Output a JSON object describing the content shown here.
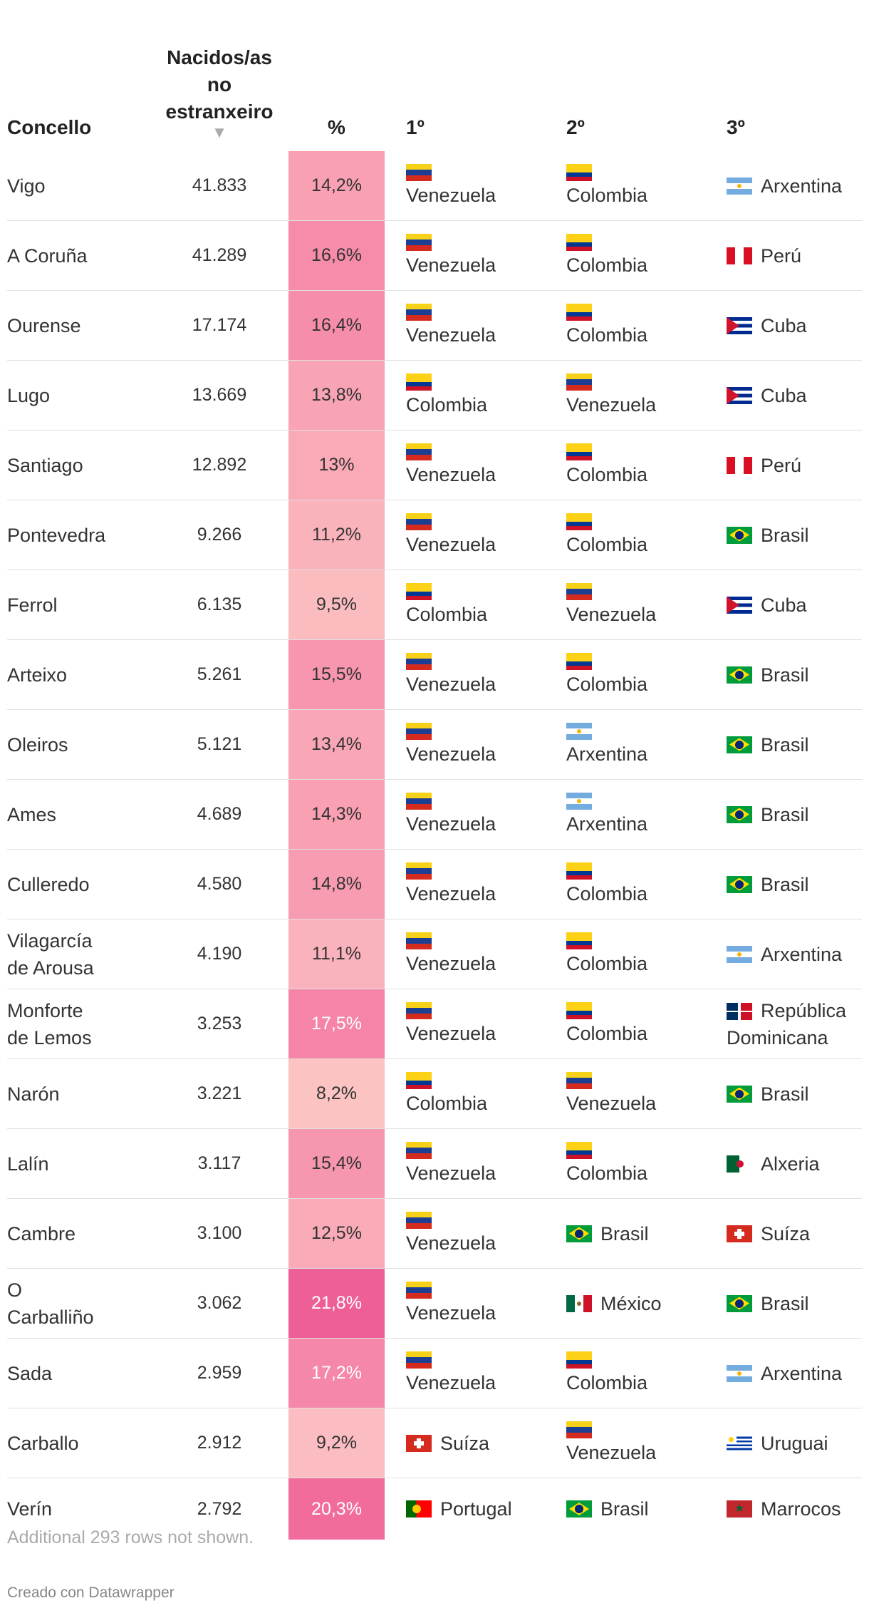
{
  "headers": {
    "concello": "Concello",
    "born": [
      "Nacidos/as",
      "no",
      "estranxeiro"
    ],
    "sort_indicator": "▼",
    "pct": "%",
    "first": "1º",
    "second": "2º",
    "third": "3º"
  },
  "rows": [
    {
      "name": [
        "Vigo"
      ],
      "born": "41.833",
      "pct": "14,2%",
      "pct_value": 14.2,
      "c1": "Venezuela",
      "c1_flag": "ve",
      "c1_layout": "stack",
      "c2": "Colombia",
      "c2_flag": "co",
      "c2_layout": "stack",
      "c3": "Arxentina",
      "c3_flag": "ar",
      "c3_layout": "inline"
    },
    {
      "name": [
        "A Coruña"
      ],
      "born": "41.289",
      "pct": "16,6%",
      "pct_value": 16.6,
      "c1": "Venezuela",
      "c1_flag": "ve",
      "c1_layout": "stack",
      "c2": "Colombia",
      "c2_flag": "co",
      "c2_layout": "stack",
      "c3": "Perú",
      "c3_flag": "pe",
      "c3_layout": "inline"
    },
    {
      "name": [
        "Ourense"
      ],
      "born": "17.174",
      "pct": "16,4%",
      "pct_value": 16.4,
      "c1": "Venezuela",
      "c1_flag": "ve",
      "c1_layout": "stack",
      "c2": "Colombia",
      "c2_flag": "co",
      "c2_layout": "stack",
      "c3": "Cuba",
      "c3_flag": "cu",
      "c3_layout": "inline"
    },
    {
      "name": [
        "Lugo"
      ],
      "born": "13.669",
      "pct": "13,8%",
      "pct_value": 13.8,
      "c1": "Colombia",
      "c1_flag": "co",
      "c1_layout": "stack",
      "c2": "Venezuela",
      "c2_flag": "ve",
      "c2_layout": "stack",
      "c3": "Cuba",
      "c3_flag": "cu",
      "c3_layout": "inline"
    },
    {
      "name": [
        "Santiago"
      ],
      "born": "12.892",
      "pct": "13%",
      "pct_value": 13.0,
      "c1": "Venezuela",
      "c1_flag": "ve",
      "c1_layout": "stack",
      "c2": "Colombia",
      "c2_flag": "co",
      "c2_layout": "stack",
      "c3": "Perú",
      "c3_flag": "pe",
      "c3_layout": "inline"
    },
    {
      "name": [
        "Pontevedra"
      ],
      "born": "9.266",
      "pct": "11,2%",
      "pct_value": 11.2,
      "c1": "Venezuela",
      "c1_flag": "ve",
      "c1_layout": "stack",
      "c2": "Colombia",
      "c2_flag": "co",
      "c2_layout": "stack",
      "c3": "Brasil",
      "c3_flag": "br",
      "c3_layout": "inline"
    },
    {
      "name": [
        "Ferrol"
      ],
      "born": "6.135",
      "pct": "9,5%",
      "pct_value": 9.5,
      "c1": "Colombia",
      "c1_flag": "co",
      "c1_layout": "stack",
      "c2": "Venezuela",
      "c2_flag": "ve",
      "c2_layout": "stack",
      "c3": "Cuba",
      "c3_flag": "cu",
      "c3_layout": "inline"
    },
    {
      "name": [
        "Arteixo"
      ],
      "born": "5.261",
      "pct": "15,5%",
      "pct_value": 15.5,
      "c1": "Venezuela",
      "c1_flag": "ve",
      "c1_layout": "stack",
      "c2": "Colombia",
      "c2_flag": "co",
      "c2_layout": "stack",
      "c3": "Brasil",
      "c3_flag": "br",
      "c3_layout": "inline"
    },
    {
      "name": [
        "Oleiros"
      ],
      "born": "5.121",
      "pct": "13,4%",
      "pct_value": 13.4,
      "c1": "Venezuela",
      "c1_flag": "ve",
      "c1_layout": "stack",
      "c2": "Arxentina",
      "c2_flag": "ar",
      "c2_layout": "stack",
      "c3": "Brasil",
      "c3_flag": "br",
      "c3_layout": "inline"
    },
    {
      "name": [
        "Ames"
      ],
      "born": "4.689",
      "pct": "14,3%",
      "pct_value": 14.3,
      "c1": "Venezuela",
      "c1_flag": "ve",
      "c1_layout": "stack",
      "c2": "Arxentina",
      "c2_flag": "ar",
      "c2_layout": "stack",
      "c3": "Brasil",
      "c3_flag": "br",
      "c3_layout": "inline"
    },
    {
      "name": [
        "Culleredo"
      ],
      "born": "4.580",
      "pct": "14,8%",
      "pct_value": 14.8,
      "c1": "Venezuela",
      "c1_flag": "ve",
      "c1_layout": "stack",
      "c2": "Colombia",
      "c2_flag": "co",
      "c2_layout": "stack",
      "c3": "Brasil",
      "c3_flag": "br",
      "c3_layout": "inline"
    },
    {
      "name": [
        "Vilagarcía",
        "de Arousa"
      ],
      "born": "4.190",
      "pct": "11,1%",
      "pct_value": 11.1,
      "c1": "Venezuela",
      "c1_flag": "ve",
      "c1_layout": "stack",
      "c2": "Colombia",
      "c2_flag": "co",
      "c2_layout": "stack",
      "c3": "Arxentina",
      "c3_flag": "ar",
      "c3_layout": "inline"
    },
    {
      "name": [
        "Monforte",
        "de Lemos"
      ],
      "born": "3.253",
      "pct": "17,5%",
      "pct_value": 17.5,
      "c1": "Venezuela",
      "c1_flag": "ve",
      "c1_layout": "stack",
      "c2": "Colombia",
      "c2_flag": "co",
      "c2_layout": "stack",
      "c3": "República Dominicana",
      "c3_flag": "do",
      "c3_layout": "wrap"
    },
    {
      "name": [
        "Narón"
      ],
      "born": "3.221",
      "pct": "8,2%",
      "pct_value": 8.2,
      "c1": "Colombia",
      "c1_flag": "co",
      "c1_layout": "stack",
      "c2": "Venezuela",
      "c2_flag": "ve",
      "c2_layout": "stack",
      "c3": "Brasil",
      "c3_flag": "br",
      "c3_layout": "inline"
    },
    {
      "name": [
        "Lalín"
      ],
      "born": "3.117",
      "pct": "15,4%",
      "pct_value": 15.4,
      "c1": "Venezuela",
      "c1_flag": "ve",
      "c1_layout": "stack",
      "c2": "Colombia",
      "c2_flag": "co",
      "c2_layout": "stack",
      "c3": "Alxeria",
      "c3_flag": "dz",
      "c3_layout": "inline"
    },
    {
      "name": [
        "Cambre"
      ],
      "born": "3.100",
      "pct": "12,5%",
      "pct_value": 12.5,
      "c1": "Venezuela",
      "c1_flag": "ve",
      "c1_layout": "stack",
      "c2": "Brasil",
      "c2_flag": "br",
      "c2_layout": "inline",
      "c3": "Suíza",
      "c3_flag": "ch",
      "c3_layout": "inline"
    },
    {
      "name": [
        "O",
        "Carballiño"
      ],
      "born": "3.062",
      "pct": "21,8%",
      "pct_value": 21.8,
      "c1": "Venezuela",
      "c1_flag": "ve",
      "c1_layout": "stack",
      "c2": "México",
      "c2_flag": "mx",
      "c2_layout": "inline",
      "c3": "Brasil",
      "c3_flag": "br",
      "c3_layout": "inline"
    },
    {
      "name": [
        "Sada"
      ],
      "born": "2.959",
      "pct": "17,2%",
      "pct_value": 17.2,
      "c1": "Venezuela",
      "c1_flag": "ve",
      "c1_layout": "stack",
      "c2": "Colombia",
      "c2_flag": "co",
      "c2_layout": "stack",
      "c3": "Arxentina",
      "c3_flag": "ar",
      "c3_layout": "inline"
    },
    {
      "name": [
        "Carballo"
      ],
      "born": "2.912",
      "pct": "9,2%",
      "pct_value": 9.2,
      "c1": "Suíza",
      "c1_flag": "ch",
      "c1_layout": "inline",
      "c2": "Venezuela",
      "c2_flag": "ve",
      "c2_layout": "stack",
      "c3": "Uruguai",
      "c3_flag": "uy",
      "c3_layout": "inline"
    },
    {
      "name": [
        "Verín"
      ],
      "born": "2.792",
      "pct": "20,3%",
      "pct_value": 20.3,
      "c1": "Portugal",
      "c1_flag": "pt",
      "c1_layout": "inline",
      "c2": "Brasil",
      "c2_flag": "br",
      "c2_layout": "inline",
      "c3": "Marrocos",
      "c3_flag": "ma",
      "c3_layout": "inline"
    }
  ],
  "colors": {
    "scale_low": "#fcc4c4",
    "scale_mid": "#f9a3b4",
    "scale_high": "#ef5d96",
    "text_dark": "#333333",
    "text_light": "#ffffff"
  },
  "footer": {
    "note": "Additional 293 rows not shown.",
    "credit": "Creado con Datawrapper"
  }
}
